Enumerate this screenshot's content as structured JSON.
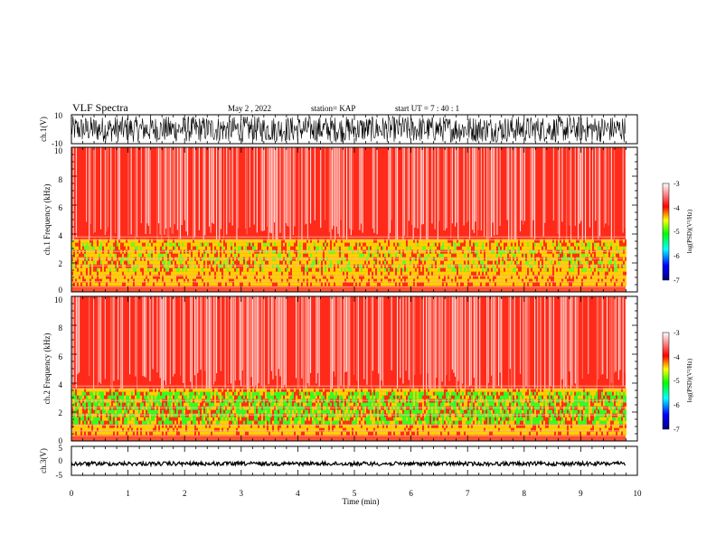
{
  "header": {
    "title": "VLF Spectra",
    "date": "May 2 , 2022",
    "station": "station= KAP",
    "start_time": "start UT = 7 : 40 : 1"
  },
  "colors": {
    "cmap": [
      "#000080",
      "#0000ff",
      "#00ffff",
      "#00ff00",
      "#ffff00",
      "#ff0000",
      "#ffffff"
    ]
  },
  "chart_data": [
    {
      "type": "line",
      "ylabel": "ch.1(V)",
      "ylim": [
        -10,
        10
      ],
      "tick_labels": [
        "10",
        "-10"
      ],
      "description": "Broadband time series for channel 1 oscillating roughly between -9 and +9 V over the 0 to 9.85 min record"
    },
    {
      "type": "heatmap",
      "ylabel": "ch.1 Frequency (kHz)",
      "ylim": [
        0,
        10
      ],
      "tick_labels": [
        "0",
        "2",
        "4",
        "6",
        "8",
        "10"
      ],
      "colorbar": {
        "label": "log(PSD)(V²/Hz)",
        "range": [
          -7,
          -3
        ],
        "tick_labels": [
          "-3",
          "-4",
          "-5",
          "-6",
          "-7"
        ]
      }
    },
    {
      "type": "heatmap",
      "ylabel": "ch.2 Frequency (kHz)",
      "ylim": [
        0,
        10
      ],
      "tick_labels": [
        "0",
        "2",
        "4",
        "6",
        "8",
        "10"
      ],
      "colorbar": {
        "label": "log(PSD)(V²/Hz)",
        "range": [
          -7,
          -3
        ],
        "tick_labels": [
          "-3",
          "-4",
          "-5",
          "-6",
          "-7"
        ]
      }
    },
    {
      "type": "line",
      "ylabel": "ch.3(V)",
      "ylim": [
        -5,
        5
      ],
      "tick_labels": [
        "5",
        "0",
        "-5"
      ],
      "description": "Channel 3 signal nearly constant near -1 V with small noise"
    }
  ],
  "xaxis": {
    "label": "Time (min)",
    "xlim": [
      0,
      10
    ],
    "tick_labels": [
      "0",
      "1",
      "2",
      "3",
      "4",
      "5",
      "6",
      "7",
      "8",
      "9",
      "10"
    ]
  }
}
